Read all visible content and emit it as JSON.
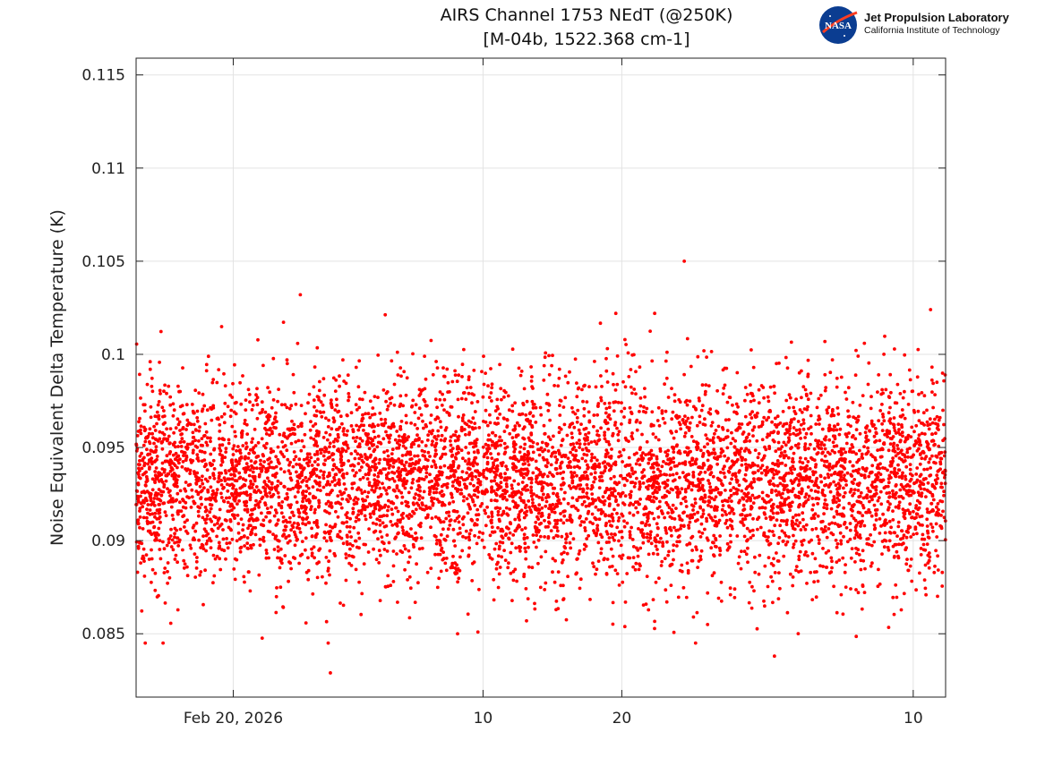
{
  "chart_data": {
    "type": "scatter",
    "title": [
      "AIRS Channel 1753 NEdT (@250K)",
      "[M-04b, 1522.368 cm-1]"
    ],
    "xlabel": "",
    "ylabel": "Noise Equivalent Delta Temperature (K)",
    "xlim": [
      "2026-02-13",
      "2026-04-12T08:00"
    ],
    "ylim": [
      0.0816,
      0.1159
    ],
    "grid": true,
    "x_ticks": [
      {
        "date": "2026-02-20",
        "label": "Feb 20, 2026"
      },
      {
        "date": "2026-03-10",
        "label": "10"
      },
      {
        "date": "2026-03-20",
        "label": "20"
      },
      {
        "date": "2026-04-10",
        "label": "10"
      }
    ],
    "y_ticks": [
      {
        "value": 0.085,
        "label": "0.085"
      },
      {
        "value": 0.09,
        "label": "0.09"
      },
      {
        "value": 0.095,
        "label": "0.095"
      },
      {
        "value": 0.1,
        "label": "0.1"
      },
      {
        "value": 0.105,
        "label": "0.105"
      },
      {
        "value": 0.11,
        "label": "0.11"
      },
      {
        "value": 0.115,
        "label": "0.115"
      }
    ],
    "series": [
      {
        "name": "NEdT",
        "color": "#ff0000",
        "distribution": {
          "mean": 0.0932,
          "std": 0.0027,
          "points_per_day": 110
        },
        "notable_points": [
          {
            "date": "2026-03-24T12:00",
            "value": 0.105
          },
          {
            "date": "2026-02-27T00:00",
            "value": 0.0829
          },
          {
            "date": "2026-02-24T20:00",
            "value": 0.1032
          },
          {
            "date": "2026-03-31T00:00",
            "value": 0.0838
          },
          {
            "date": "2026-03-08T04:00",
            "value": 0.085
          },
          {
            "date": "2026-04-11T06:00",
            "value": 0.1024
          }
        ]
      }
    ]
  },
  "logo": {
    "line1": "Jet Propulsion Laboratory",
    "line2": "California Institute of Technology",
    "badge": "NASA"
  }
}
